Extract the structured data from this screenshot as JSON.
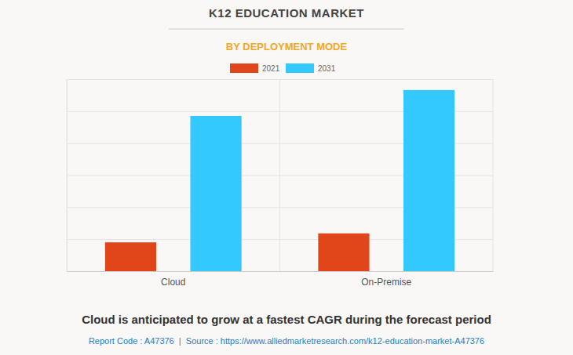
{
  "chart_data": {
    "type": "bar",
    "title": "K12 EDUCATION MARKET",
    "subtitle": "BY DEPLOYMENT MODE",
    "categories": [
      "Cloud",
      "On-Premise"
    ],
    "series": [
      {
        "name": "2021",
        "color": "#e0461a",
        "values": [
          0.9,
          1.18
        ]
      },
      {
        "name": "2031",
        "color": "#33c9ff",
        "values": [
          4.85,
          5.66
        ]
      }
    ],
    "ylim": [
      0,
      6
    ],
    "yticks": [
      0,
      1,
      2,
      3,
      4,
      5,
      6
    ],
    "grid": true,
    "tick_labels": "x",
    "legend": "top",
    "annotations": [
      "Cloud is anticipated to grow at a fastest CAGR during the forecast period",
      "Report Code : A47376  |  Source : https://www.alliedmarketresearch.com/k12-education-market-A47376"
    ]
  }
}
